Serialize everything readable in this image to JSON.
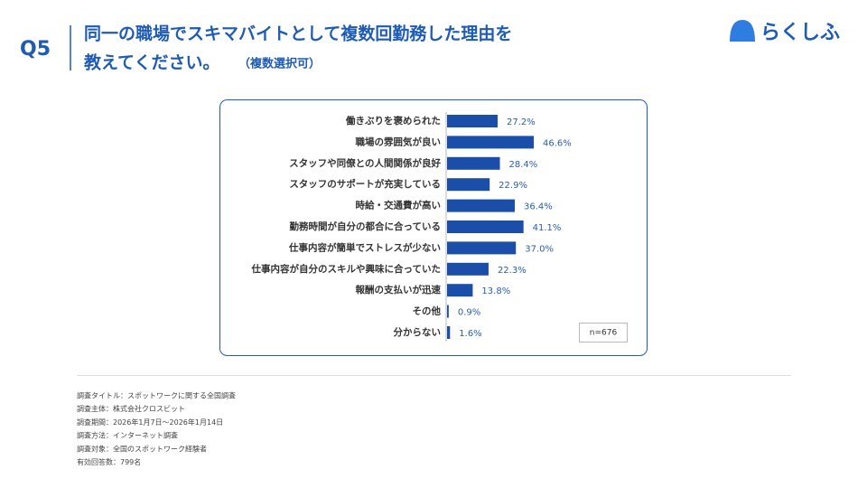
{
  "header": {
    "question": "Q5",
    "title_line1": "同一の職場でスキマバイトとして複数回勤務した理由を",
    "title_line2": "教えてください。",
    "note": "（複数選択可）",
    "logo": "らくしふ"
  },
  "chart_data": {
    "type": "bar",
    "orientation": "horizontal",
    "color": "#1a4ea8",
    "categories": [
      "働きぶりを褒められた",
      "職場の雰囲気が良い",
      "スタッフや同僚との人間関係が良好",
      "スタッフのサポートが充実している",
      "時給・交通費が高い",
      "勤務時間が自分の都合に合っている",
      "仕事内容が簡単でストレスが少ない",
      "仕事内容が自分のスキルや興味に合っていた",
      "報酬の支払いが迅速",
      "その他",
      "分からない"
    ],
    "values": [
      27.2,
      46.6,
      28.4,
      22.9,
      36.4,
      41.1,
      37.0,
      22.3,
      13.8,
      0.9,
      1.6
    ],
    "value_labels": [
      "27.2%",
      "46.6%",
      "28.4%",
      "22.9%",
      "36.4%",
      "41.1%",
      "37.0%",
      "22.3%",
      "13.8%",
      "0.9%",
      "1.6%"
    ],
    "annotation": "n=676"
  },
  "footnotes": [
    "調査タイトル：スポットワークに関する全国調査",
    "調査主体：株式会社クロスビット",
    "調査期間：2026年1月7日～2026年1月14日",
    "調査方法：インターネット調査",
    "調査対象：全国のスポットワーク経験者",
    "有効回答数：799名"
  ]
}
